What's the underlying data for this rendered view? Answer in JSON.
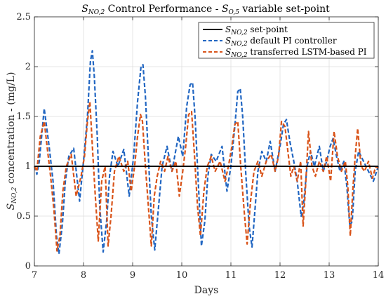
{
  "chart_data": {
    "type": "line",
    "title": {
      "pre": "S",
      "pre_sub": "NO,2",
      "mid": " Control Performance - ",
      "post": "S",
      "post_sub": "O,5",
      "end": " variable set-point"
    },
    "xlabel": "Days",
    "ylabel": {
      "pre": "S",
      "sub": "NO,2",
      "post": " concentration - (mg/L)"
    },
    "xlim": [
      7,
      14
    ],
    "ylim": [
      0,
      2.5
    ],
    "xticks": [
      7,
      8,
      9,
      10,
      11,
      12,
      13,
      14
    ],
    "xtick_labels": [
      "7",
      "8",
      "9",
      "10",
      "11",
      "12",
      "13",
      "14"
    ],
    "yticks": [
      0,
      0.5,
      1,
      1.5,
      2,
      2.5
    ],
    "ytick_labels": [
      "0",
      "0.5",
      "1",
      "1.5",
      "2",
      "2.5"
    ],
    "grid": true,
    "legend_position": "top-right",
    "series": [
      {
        "key": "setpoint",
        "legend": {
          "pre": "S",
          "sub": "NO,2",
          "post": " set-point"
        },
        "color": "#000000",
        "dash": "solid",
        "x": [
          7.0,
          14.0
        ],
        "y": [
          1.0,
          1.0
        ]
      },
      {
        "key": "default_pi",
        "legend": {
          "pre": "S",
          "sub": "NO,2",
          "post": " default PI controller"
        },
        "color": "#2166c2",
        "dash": "dashed",
        "x": [
          7.0,
          7.05,
          7.1,
          7.2,
          7.3,
          7.38,
          7.45,
          7.5,
          7.57,
          7.63,
          7.7,
          7.8,
          7.92,
          8.0,
          8.08,
          8.14,
          8.18,
          8.22,
          8.28,
          8.33,
          8.4,
          8.47,
          8.53,
          8.6,
          8.7,
          8.82,
          8.93,
          9.02,
          9.1,
          9.17,
          9.21,
          9.26,
          9.32,
          9.38,
          9.45,
          9.52,
          9.6,
          9.7,
          9.8,
          9.93,
          10.02,
          10.1,
          10.17,
          10.22,
          10.27,
          10.33,
          10.4,
          10.47,
          10.53,
          10.6,
          10.7,
          10.82,
          10.92,
          11.0,
          11.08,
          11.14,
          11.19,
          11.24,
          11.3,
          11.37,
          11.43,
          11.48,
          11.55,
          11.63,
          11.72,
          11.8,
          11.9,
          12.0,
          12.07,
          12.13,
          12.2,
          12.28,
          12.35,
          12.43,
          12.48,
          12.55,
          12.62,
          12.7,
          12.8,
          12.88,
          12.95,
          13.02,
          13.08,
          13.15,
          13.22,
          13.3,
          13.36,
          13.42,
          13.47,
          13.53,
          13.6,
          13.7,
          13.8,
          13.9,
          14.0
        ],
        "y": [
          1.0,
          0.92,
          1.05,
          1.58,
          1.2,
          0.85,
          0.3,
          0.12,
          0.42,
          0.85,
          1.1,
          1.18,
          0.65,
          1.05,
          1.5,
          2.05,
          2.16,
          1.9,
          1.3,
          0.6,
          0.14,
          0.45,
          0.9,
          1.15,
          1.0,
          1.17,
          0.7,
          1.1,
          1.65,
          2.0,
          2.02,
          1.7,
          1.1,
          0.5,
          0.16,
          0.55,
          1.0,
          1.2,
          0.95,
          1.3,
          1.1,
          1.6,
          1.82,
          1.84,
          1.5,
          0.9,
          0.2,
          0.45,
          0.9,
          1.12,
          1.05,
          1.2,
          0.75,
          1.0,
          1.4,
          1.75,
          1.78,
          1.5,
          0.95,
          0.4,
          0.19,
          0.5,
          0.95,
          1.15,
          1.05,
          1.25,
          0.95,
          1.2,
          1.42,
          1.47,
          1.25,
          1.05,
          0.85,
          0.5,
          0.62,
          1.0,
          1.15,
          1.0,
          1.2,
          0.95,
          1.05,
          1.2,
          1.28,
          1.1,
          0.95,
          1.05,
          0.8,
          0.4,
          0.45,
          0.95,
          1.15,
          1.05,
          0.95,
          0.85,
          1.0
        ]
      },
      {
        "key": "lstm_pi",
        "legend": {
          "pre": "S",
          "sub": "NO,2",
          "post": " transferred LSTM-based PI"
        },
        "color": "#d9541a",
        "dash": "dashed",
        "x": [
          7.0,
          7.05,
          7.12,
          7.2,
          7.27,
          7.33,
          7.4,
          7.46,
          7.52,
          7.58,
          7.65,
          7.75,
          7.85,
          7.95,
          8.02,
          8.08,
          8.13,
          8.18,
          8.24,
          8.3,
          8.37,
          8.44,
          8.5,
          8.56,
          8.63,
          8.72,
          8.82,
          8.9,
          8.97,
          9.04,
          9.1,
          9.16,
          9.2,
          9.26,
          9.32,
          9.38,
          9.44,
          9.5,
          9.57,
          9.65,
          9.72,
          9.8,
          9.88,
          9.95,
          10.02,
          10.08,
          10.14,
          10.2,
          10.26,
          10.32,
          10.38,
          10.45,
          10.52,
          10.6,
          10.68,
          10.78,
          10.88,
          10.95,
          11.02,
          11.08,
          11.14,
          11.2,
          11.27,
          11.33,
          11.4,
          11.47,
          11.55,
          11.63,
          11.72,
          11.82,
          11.9,
          11.97,
          12.03,
          12.1,
          12.16,
          12.22,
          12.28,
          12.35,
          12.42,
          12.47,
          12.52,
          12.58,
          12.65,
          12.72,
          12.8,
          12.88,
          12.95,
          13.03,
          13.1,
          13.17,
          13.25,
          13.33,
          13.38,
          13.43,
          13.48,
          13.53,
          13.58,
          13.65,
          13.72,
          13.8,
          13.88,
          13.95,
          14.0
        ],
        "y": [
          1.0,
          0.95,
          1.3,
          1.45,
          1.15,
          0.9,
          0.55,
          0.15,
          0.3,
          0.75,
          1.0,
          1.12,
          0.7,
          0.9,
          1.1,
          1.45,
          1.65,
          1.2,
          0.7,
          0.25,
          0.85,
          1.0,
          0.2,
          0.5,
          0.95,
          1.1,
          0.95,
          1.05,
          0.75,
          1.0,
          1.3,
          1.52,
          1.45,
          1.0,
          0.6,
          0.2,
          0.7,
          0.9,
          1.05,
          0.95,
          1.1,
          0.95,
          1.05,
          0.7,
          0.95,
          1.2,
          1.52,
          1.55,
          1.1,
          0.6,
          0.3,
          0.75,
          1.0,
          1.1,
          0.95,
          1.05,
          0.85,
          1.0,
          1.2,
          1.42,
          1.45,
          1.0,
          0.55,
          0.22,
          0.65,
          0.95,
          1.05,
          0.9,
          1.05,
          1.12,
          0.95,
          1.1,
          1.45,
          1.4,
          1.15,
          0.9,
          1.0,
          0.85,
          1.05,
          0.4,
          0.8,
          1.35,
          1.0,
          0.9,
          1.05,
          0.95,
          1.1,
          0.85,
          1.35,
          1.1,
          0.95,
          1.05,
          0.8,
          0.3,
          0.75,
          1.1,
          1.38,
          1.0,
          0.95,
          1.05,
          0.88,
          1.0,
          0.98
        ]
      }
    ]
  }
}
